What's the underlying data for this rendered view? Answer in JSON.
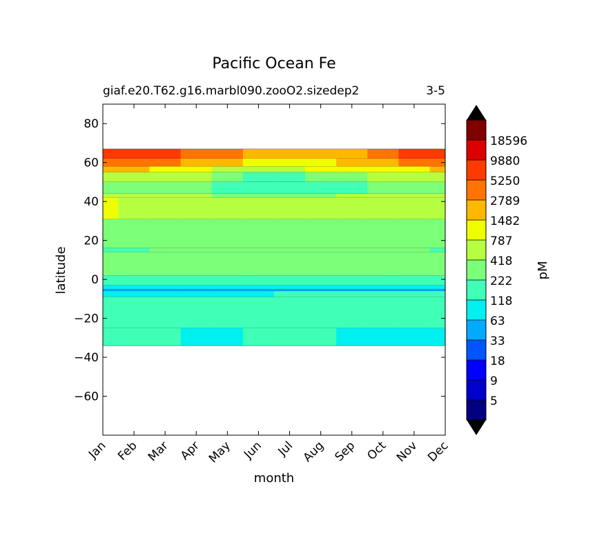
{
  "chart_data": {
    "type": "heatmap",
    "title": "Pacific Ocean Fe",
    "subtitle": "giaf.e20.T62.g16.marbl090.zooO2.sizedep2",
    "subtitle_right": "3-5",
    "xlabel": "month",
    "ylabel": "latitude",
    "months": [
      "Jan",
      "Feb",
      "Mar",
      "Apr",
      "May",
      "Jun",
      "Jul",
      "Aug",
      "Sep",
      "Oct",
      "Nov",
      "Dec"
    ],
    "xlim": [
      1,
      12
    ],
    "ylim": [
      -80,
      90
    ],
    "yticks": [
      -60,
      -40,
      -20,
      0,
      20,
      40,
      60,
      80
    ],
    "data_lat_range": [
      -34,
      67
    ],
    "colorbar": {
      "label": "pM",
      "levels": [
        5,
        9,
        18,
        33,
        63,
        118,
        222,
        418,
        787,
        1482,
        2789,
        5250,
        9880,
        18596
      ],
      "colors": [
        "#000080",
        "#0000cd",
        "#0000ff",
        "#0055ff",
        "#00aaff",
        "#00f0f0",
        "#40ffb6",
        "#7cff79",
        "#b6ff40",
        "#f0ff00",
        "#ffb800",
        "#ff7400",
        "#ff3a00",
        "#dd0000",
        "#800000"
      ],
      "extend_color": "#000000"
    },
    "bands": [
      {
        "lat_min": 62,
        "lat_max": 67,
        "values_pM": [
          7000,
          6500,
          5500,
          3500,
          2800,
          1800,
          1800,
          1800,
          2400,
          4000,
          6000,
          7000
        ]
      },
      {
        "lat_min": 58,
        "lat_max": 62,
        "values_pM": [
          3500,
          3200,
          2900,
          2200,
          1800,
          1100,
          900,
          1100,
          1500,
          2200,
          3000,
          3500
        ]
      },
      {
        "lat_min": 55,
        "lat_max": 58,
        "values_pM": [
          1800,
          1600,
          1300,
          1000,
          700,
          600,
          700,
          800,
          900,
          1000,
          1200,
          1500
        ]
      },
      {
        "lat_min": 50,
        "lat_max": 55,
        "values_pM": [
          500,
          500,
          500,
          500,
          300,
          200,
          200,
          300,
          300,
          500,
          500,
          500
        ]
      },
      {
        "lat_min": 44,
        "lat_max": 50,
        "values_pM": [
          300,
          300,
          400,
          400,
          200,
          180,
          200,
          200,
          200,
          300,
          300,
          300
        ]
      },
      {
        "lat_min": 42,
        "lat_max": 44,
        "values_pM": [
          700,
          700,
          600,
          600,
          400,
          400,
          400,
          400,
          600,
          600,
          700,
          700
        ]
      },
      {
        "lat_min": 31,
        "lat_max": 42,
        "values_pM": [
          800,
          600,
          600,
          500,
          500,
          500,
          500,
          500,
          500,
          500,
          600,
          700
        ]
      },
      {
        "lat_min": 16,
        "lat_max": 31,
        "values_pM": [
          400,
          400,
          400,
          400,
          400,
          400,
          400,
          400,
          400,
          400,
          400,
          400
        ]
      },
      {
        "lat_min": 14,
        "lat_max": 16,
        "values_pM": [
          200,
          200,
          300,
          400,
          400,
          400,
          400,
          400,
          400,
          400,
          300,
          200
        ]
      },
      {
        "lat_min": 2,
        "lat_max": 14,
        "values_pM": [
          400,
          400,
          400,
          400,
          400,
          400,
          400,
          400,
          400,
          400,
          400,
          400
        ]
      },
      {
        "lat_min": -3,
        "lat_max": 2,
        "values_pM": [
          200,
          200,
          200,
          200,
          200,
          200,
          200,
          200,
          200,
          200,
          200,
          200
        ]
      },
      {
        "lat_min": -5,
        "lat_max": -3,
        "values_pM": [
          100,
          100,
          100,
          100,
          100,
          100,
          100,
          100,
          100,
          100,
          100,
          100
        ]
      },
      {
        "lat_min": -6,
        "lat_max": -5,
        "values_pM": [
          60,
          60,
          60,
          60,
          60,
          60,
          60,
          60,
          60,
          60,
          60,
          60
        ]
      },
      {
        "lat_min": -9,
        "lat_max": -6,
        "values_pM": [
          100,
          100,
          100,
          100,
          100,
          100,
          200,
          200,
          200,
          200,
          200,
          200
        ]
      },
      {
        "lat_min": -25,
        "lat_max": -9,
        "values_pM": [
          200,
          200,
          200,
          200,
          200,
          200,
          200,
          200,
          200,
          200,
          200,
          200
        ]
      },
      {
        "lat_min": -34,
        "lat_max": -25,
        "values_pM": [
          200,
          200,
          200,
          100,
          100,
          200,
          200,
          200,
          100,
          100,
          100,
          100
        ]
      }
    ]
  }
}
